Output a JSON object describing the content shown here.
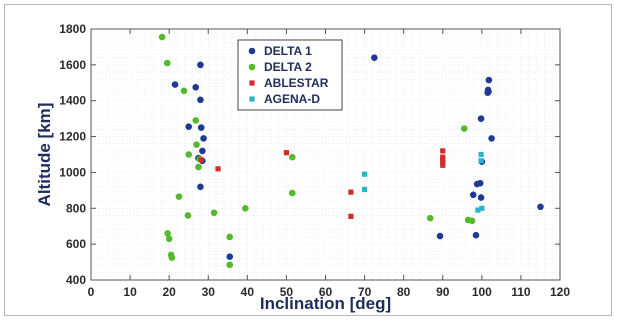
{
  "chart_data": {
    "type": "scatter",
    "xlabel": "Inclination [deg]",
    "ylabel": "Altitude [km]",
    "xlim": [
      0,
      120
    ],
    "ylim": [
      400,
      1800
    ],
    "xticks": [
      "0",
      "10",
      "20",
      "30",
      "40",
      "50",
      "60",
      "70",
      "80",
      "90",
      "100",
      "110",
      "120"
    ],
    "yticks": [
      "400",
      "600",
      "800",
      "1000",
      "1200",
      "1400",
      "1600",
      "1800"
    ],
    "grid": true,
    "legend_position": "top-center",
    "series": [
      {
        "name": "DELTA 1",
        "color": "#1f3a93",
        "marker": "circle",
        "points": [
          [
            21.5,
            1490
          ],
          [
            26.8,
            1475
          ],
          [
            28.0,
            1600
          ],
          [
            28.0,
            1405
          ],
          [
            25.0,
            1255
          ],
          [
            28.2,
            1250
          ],
          [
            28.8,
            1190
          ],
          [
            28.5,
            1120
          ],
          [
            28.5,
            1065
          ],
          [
            27.5,
            1080
          ],
          [
            28.0,
            920
          ],
          [
            35.5,
            530
          ],
          [
            72.5,
            1640
          ],
          [
            89.3,
            645
          ],
          [
            98.5,
            650
          ],
          [
            97.8,
            875
          ],
          [
            98.8,
            935
          ],
          [
            99.6,
            940
          ],
          [
            99.8,
            860
          ],
          [
            100.0,
            1060
          ],
          [
            99.8,
            1300
          ],
          [
            101.5,
            1445
          ],
          [
            101.6,
            1460
          ],
          [
            101.7,
            1450
          ],
          [
            101.8,
            1515
          ],
          [
            102.5,
            1190
          ],
          [
            115.0,
            808
          ]
        ]
      },
      {
        "name": "DELTA 2",
        "color": "#55b92e",
        "marker": "circle",
        "points": [
          [
            18.2,
            1755
          ],
          [
            19.5,
            1610
          ],
          [
            23.8,
            1455
          ],
          [
            26.8,
            1290
          ],
          [
            27.0,
            1155
          ],
          [
            25.0,
            1100
          ],
          [
            27.5,
            1030
          ],
          [
            27.8,
            1075
          ],
          [
            22.5,
            865
          ],
          [
            24.8,
            760
          ],
          [
            31.5,
            775
          ],
          [
            39.5,
            800
          ],
          [
            19.6,
            660
          ],
          [
            20.0,
            630
          ],
          [
            20.5,
            540
          ],
          [
            20.7,
            525
          ],
          [
            35.5,
            640
          ],
          [
            35.5,
            485
          ],
          [
            51.5,
            1085
          ],
          [
            51.5,
            885
          ],
          [
            86.8,
            745
          ],
          [
            96.5,
            735
          ],
          [
            97.5,
            730
          ],
          [
            95.5,
            1245
          ]
        ]
      },
      {
        "name": "ABLESTAR",
        "color": "#d42a2a",
        "marker": "square",
        "points": [
          [
            28.2,
            1070
          ],
          [
            32.5,
            1020
          ],
          [
            50.0,
            1110
          ],
          [
            66.5,
            890
          ],
          [
            66.5,
            755
          ],
          [
            90.0,
            1120
          ],
          [
            90.0,
            1085
          ],
          [
            90.0,
            1070
          ],
          [
            90.0,
            1055
          ],
          [
            90.0,
            1040
          ]
        ]
      },
      {
        "name": "AGENA-D",
        "color": "#2ab4c8",
        "marker": "square",
        "points": [
          [
            70.0,
            990
          ],
          [
            70.0,
            905
          ],
          [
            99.8,
            1100
          ],
          [
            99.8,
            1065
          ],
          [
            99.0,
            790
          ],
          [
            100.0,
            800
          ]
        ]
      }
    ]
  }
}
